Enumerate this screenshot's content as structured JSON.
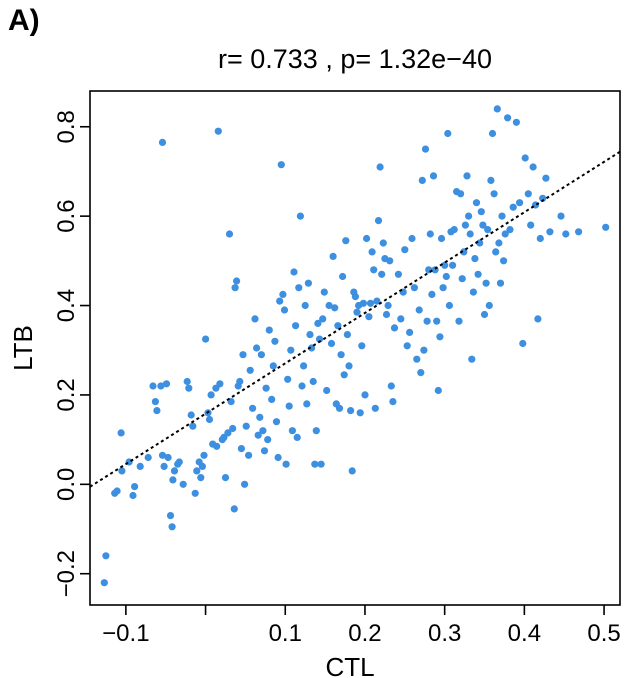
{
  "panel_label": "A)",
  "chart_data": {
    "type": "scatter",
    "title": "r= 0.733 , p= 1.32e−40",
    "xlabel": "CTL",
    "ylabel": "LTB",
    "xlim": [
      -0.145,
      0.52
    ],
    "ylim": [
      -0.27,
      0.88
    ],
    "x_ticks": [
      -0.1,
      0.0,
      0.1,
      0.2,
      0.3,
      0.4,
      0.5
    ],
    "x_tick_labels": [
      "−0.1",
      "",
      "0.1",
      "0.2",
      "0.3",
      "0.4",
      "0.5"
    ],
    "y_ticks": [
      -0.2,
      0.0,
      0.2,
      0.4,
      0.6,
      0.8
    ],
    "y_tick_labels": [
      "−0.2",
      "0.0",
      "0.2",
      "0.4",
      "0.6",
      "0.8"
    ],
    "grid": false,
    "point_color": "#3d8fe0",
    "regression_line": {
      "style": "dotted",
      "color": "#000000",
      "intercept": 0.158,
      "slope": 1.127
    },
    "points": [
      [
        -0.127,
        -0.22
      ],
      [
        -0.125,
        -0.16
      ],
      [
        -0.114,
        -0.02
      ],
      [
        -0.111,
        -0.015
      ],
      [
        -0.106,
        0.115
      ],
      [
        -0.105,
        0.03
      ],
      [
        -0.096,
        0.05
      ],
      [
        -0.091,
        -0.025
      ],
      [
        -0.089,
        -0.005
      ],
      [
        -0.082,
        0.04
      ],
      [
        -0.072,
        0.06
      ],
      [
        -0.066,
        0.22
      ],
      [
        -0.063,
        0.185
      ],
      [
        -0.061,
        0.165
      ],
      [
        -0.056,
        0.22
      ],
      [
        -0.054,
        0.065
      ],
      [
        -0.054,
        0.765
      ],
      [
        -0.052,
        0.04
      ],
      [
        -0.049,
        0.225
      ],
      [
        -0.047,
        0.06
      ],
      [
        -0.044,
        -0.07
      ],
      [
        -0.042,
        -0.095
      ],
      [
        -0.041,
        0.01
      ],
      [
        -0.039,
        0.03
      ],
      [
        -0.035,
        0.045
      ],
      [
        -0.033,
        0.05
      ],
      [
        -0.028,
        0.0
      ],
      [
        -0.023,
        0.23
      ],
      [
        -0.021,
        0.215
      ],
      [
        -0.018,
        0.155
      ],
      [
        -0.016,
        0.13
      ],
      [
        -0.013,
        -0.02
      ],
      [
        -0.011,
        0.03
      ],
      [
        -0.008,
        0.05
      ],
      [
        -0.006,
        0.015
      ],
      [
        -0.004,
        0.04
      ],
      [
        -0.002,
        0.065
      ],
      [
        0.0,
        0.325
      ],
      [
        0.003,
        0.16
      ],
      [
        0.005,
        0.145
      ],
      [
        0.007,
        0.2
      ],
      [
        0.009,
        0.09
      ],
      [
        0.013,
        0.215
      ],
      [
        0.014,
        0.085
      ],
      [
        0.016,
        0.79
      ],
      [
        0.018,
        0.225
      ],
      [
        0.021,
        0.1
      ],
      [
        0.023,
        0.105
      ],
      [
        0.025,
        0.015
      ],
      [
        0.028,
        0.115
      ],
      [
        0.03,
        0.56
      ],
      [
        0.032,
        0.185
      ],
      [
        0.034,
        0.125
      ],
      [
        0.036,
        -0.055
      ],
      [
        0.037,
        0.44
      ],
      [
        0.039,
        0.455
      ],
      [
        0.041,
        0.22
      ],
      [
        0.043,
        0.23
      ],
      [
        0.045,
        0.08
      ],
      [
        0.047,
        0.29
      ],
      [
        0.049,
        0.0
      ],
      [
        0.051,
        0.13
      ],
      [
        0.054,
        0.065
      ],
      [
        0.056,
        0.255
      ],
      [
        0.059,
        0.17
      ],
      [
        0.062,
        0.37
      ],
      [
        0.064,
        0.305
      ],
      [
        0.066,
        0.11
      ],
      [
        0.068,
        0.15
      ],
      [
        0.07,
        0.29
      ],
      [
        0.072,
        0.12
      ],
      [
        0.074,
        0.075
      ],
      [
        0.076,
        0.215
      ],
      [
        0.078,
        0.1
      ],
      [
        0.08,
        0.345
      ],
      [
        0.083,
        0.19
      ],
      [
        0.085,
        0.265
      ],
      [
        0.087,
        0.32
      ],
      [
        0.089,
        0.14
      ],
      [
        0.091,
        0.06
      ],
      [
        0.093,
        0.41
      ],
      [
        0.095,
        0.715
      ],
      [
        0.097,
        0.425
      ],
      [
        0.099,
        0.39
      ],
      [
        0.101,
        0.045
      ],
      [
        0.103,
        0.235
      ],
      [
        0.105,
        0.175
      ],
      [
        0.107,
        0.3
      ],
      [
        0.109,
        0.12
      ],
      [
        0.111,
        0.475
      ],
      [
        0.113,
        0.355
      ],
      [
        0.115,
        0.105
      ],
      [
        0.117,
        0.44
      ],
      [
        0.119,
        0.6
      ],
      [
        0.121,
        0.22
      ],
      [
        0.123,
        0.265
      ],
      [
        0.125,
        0.4
      ],
      [
        0.127,
        0.18
      ],
      [
        0.129,
        0.45
      ],
      [
        0.131,
        0.335
      ],
      [
        0.133,
        0.305
      ],
      [
        0.135,
        0.23
      ],
      [
        0.137,
        0.045
      ],
      [
        0.139,
        0.12
      ],
      [
        0.141,
        0.36
      ],
      [
        0.143,
        0.325
      ],
      [
        0.145,
        0.045
      ],
      [
        0.147,
        0.37
      ],
      [
        0.149,
        0.43
      ],
      [
        0.152,
        0.21
      ],
      [
        0.155,
        0.4
      ],
      [
        0.158,
        0.315
      ],
      [
        0.16,
        0.51
      ],
      [
        0.162,
        0.395
      ],
      [
        0.164,
        0.18
      ],
      [
        0.166,
        0.355
      ],
      [
        0.168,
        0.17
      ],
      [
        0.17,
        0.29
      ],
      [
        0.172,
        0.465
      ],
      [
        0.174,
        0.245
      ],
      [
        0.176,
        0.545
      ],
      [
        0.178,
        0.335
      ],
      [
        0.18,
        0.265
      ],
      [
        0.182,
        0.165
      ],
      [
        0.184,
        0.03
      ],
      [
        0.186,
        0.43
      ],
      [
        0.188,
        0.42
      ],
      [
        0.19,
        0.385
      ],
      [
        0.192,
        0.4
      ],
      [
        0.194,
        0.16
      ],
      [
        0.196,
        0.31
      ],
      [
        0.198,
        0.405
      ],
      [
        0.2,
        0.2
      ],
      [
        0.202,
        0.55
      ],
      [
        0.205,
        0.375
      ],
      [
        0.207,
        0.405
      ],
      [
        0.209,
        0.52
      ],
      [
        0.211,
        0.48
      ],
      [
        0.213,
        0.17
      ],
      [
        0.215,
        0.41
      ],
      [
        0.217,
        0.59
      ],
      [
        0.219,
        0.71
      ],
      [
        0.221,
        0.47
      ],
      [
        0.223,
        0.54
      ],
      [
        0.225,
        0.505
      ],
      [
        0.227,
        0.38
      ],
      [
        0.229,
        0.4
      ],
      [
        0.231,
        0.5
      ],
      [
        0.233,
        0.22
      ],
      [
        0.235,
        0.185
      ],
      [
        0.237,
        0.35
      ],
      [
        0.242,
        0.47
      ],
      [
        0.245,
        0.37
      ],
      [
        0.248,
        0.43
      ],
      [
        0.25,
        0.525
      ],
      [
        0.253,
        0.31
      ],
      [
        0.256,
        0.34
      ],
      [
        0.259,
        0.55
      ],
      [
        0.262,
        0.44
      ],
      [
        0.265,
        0.28
      ],
      [
        0.268,
        0.39
      ],
      [
        0.27,
        0.25
      ],
      [
        0.272,
        0.68
      ],
      [
        0.274,
        0.3
      ],
      [
        0.276,
        0.75
      ],
      [
        0.278,
        0.365
      ],
      [
        0.28,
        0.48
      ],
      [
        0.282,
        0.56
      ],
      [
        0.284,
        0.425
      ],
      [
        0.286,
        0.69
      ],
      [
        0.288,
        0.48
      ],
      [
        0.29,
        0.365
      ],
      [
        0.292,
        0.21
      ],
      [
        0.294,
        0.33
      ],
      [
        0.296,
        0.55
      ],
      [
        0.298,
        0.44
      ],
      [
        0.3,
        0.49
      ],
      [
        0.302,
        0.465
      ],
      [
        0.304,
        0.785
      ],
      [
        0.306,
        0.4
      ],
      [
        0.308,
        0.565
      ],
      [
        0.31,
        0.49
      ],
      [
        0.312,
        0.57
      ],
      [
        0.315,
        0.655
      ],
      [
        0.318,
        0.365
      ],
      [
        0.32,
        0.65
      ],
      [
        0.322,
        0.46
      ],
      [
        0.324,
        0.52
      ],
      [
        0.326,
        0.58
      ],
      [
        0.328,
        0.69
      ],
      [
        0.33,
        0.6
      ],
      [
        0.332,
        0.56
      ],
      [
        0.334,
        0.28
      ],
      [
        0.336,
        0.43
      ],
      [
        0.338,
        0.505
      ],
      [
        0.34,
        0.63
      ],
      [
        0.342,
        0.47
      ],
      [
        0.344,
        0.54
      ],
      [
        0.346,
        0.61
      ],
      [
        0.348,
        0.58
      ],
      [
        0.35,
        0.38
      ],
      [
        0.352,
        0.45
      ],
      [
        0.354,
        0.57
      ],
      [
        0.356,
        0.4
      ],
      [
        0.358,
        0.68
      ],
      [
        0.36,
        0.785
      ],
      [
        0.362,
        0.65
      ],
      [
        0.364,
        0.52
      ],
      [
        0.366,
        0.84
      ],
      [
        0.368,
        0.54
      ],
      [
        0.37,
        0.45
      ],
      [
        0.372,
        0.6
      ],
      [
        0.374,
        0.5
      ],
      [
        0.376,
        0.56
      ],
      [
        0.379,
        0.82
      ],
      [
        0.382,
        0.57
      ],
      [
        0.386,
        0.62
      ],
      [
        0.39,
        0.81
      ],
      [
        0.394,
        0.63
      ],
      [
        0.398,
        0.315
      ],
      [
        0.401,
        0.73
      ],
      [
        0.405,
        0.65
      ],
      [
        0.408,
        0.58
      ],
      [
        0.411,
        0.71
      ],
      [
        0.414,
        0.625
      ],
      [
        0.417,
        0.37
      ],
      [
        0.42,
        0.55
      ],
      [
        0.423,
        0.64
      ],
      [
        0.427,
        0.685
      ],
      [
        0.432,
        0.565
      ],
      [
        0.446,
        0.6
      ],
      [
        0.452,
        0.56
      ],
      [
        0.468,
        0.565
      ],
      [
        0.502,
        0.575
      ]
    ]
  }
}
